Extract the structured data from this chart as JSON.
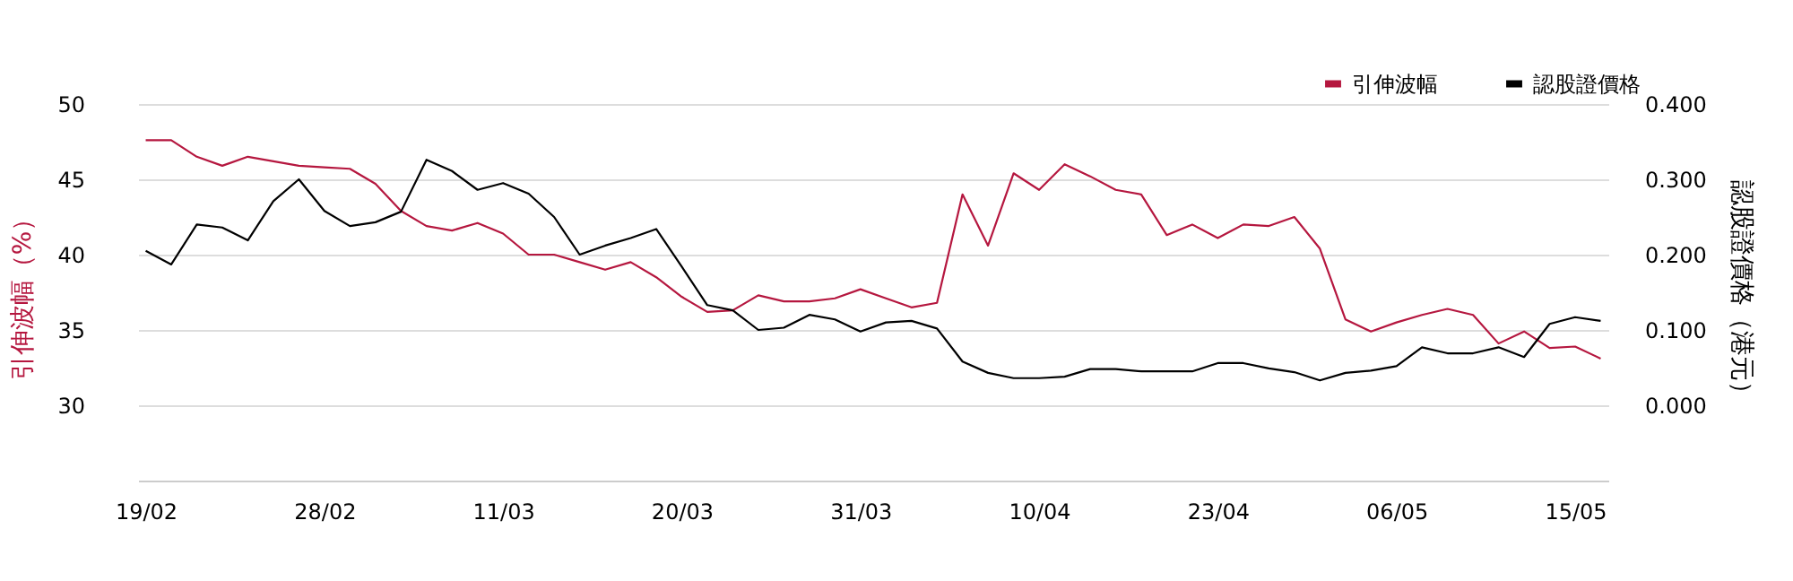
{
  "chart_data": {
    "type": "line",
    "categories": [
      "19/02",
      null,
      null,
      null,
      null,
      null,
      null,
      "28/02",
      null,
      null,
      null,
      null,
      null,
      null,
      "11/03",
      null,
      null,
      null,
      null,
      null,
      null,
      "20/03",
      null,
      null,
      null,
      null,
      null,
      null,
      "31/03",
      null,
      null,
      null,
      null,
      null,
      null,
      "10/04",
      null,
      null,
      null,
      null,
      null,
      null,
      "23/04",
      null,
      null,
      null,
      null,
      null,
      null,
      "06/05",
      null,
      null,
      null,
      null,
      null,
      null,
      "15/05",
      null
    ],
    "series": [
      {
        "name": "引伸波幅",
        "color": "#b5173f",
        "values": [
          47.6,
          47.6,
          46.5,
          45.9,
          46.5,
          46.2,
          45.9,
          45.8,
          45.7,
          44.7,
          42.9,
          41.9,
          41.6,
          42.1,
          41.4,
          40.0,
          40.0,
          39.5,
          39.0,
          39.5,
          38.5,
          37.2,
          36.2,
          36.3,
          37.3,
          36.9,
          36.9,
          37.1,
          37.7,
          37.1,
          36.5,
          36.8,
          44.0,
          40.6,
          45.4,
          44.3,
          46.0,
          45.2,
          44.3,
          44.0,
          41.3,
          42.0,
          41.1,
          42.0,
          41.9,
          42.5,
          40.4,
          35.7,
          34.9,
          35.5,
          36.0,
          36.4,
          36.0,
          34.1,
          34.9,
          33.8,
          33.9,
          33.1
        ]
      },
      {
        "name": "認股證價格",
        "color": "#000000",
        "axis": "y2",
        "values": [
          0.205,
          0.187,
          0.24,
          0.236,
          0.219,
          0.271,
          0.3,
          0.258,
          0.238,
          0.243,
          0.257,
          0.326,
          0.311,
          0.286,
          0.295,
          0.281,
          0.25,
          0.2,
          0.212,
          0.222,
          0.234,
          0.184,
          0.133,
          0.126,
          0.1,
          0.103,
          0.12,
          0.114,
          0.098,
          0.11,
          0.112,
          0.102,
          0.058,
          0.043,
          0.036,
          0.036,
          0.038,
          0.048,
          0.048,
          0.045,
          0.045,
          0.045,
          0.056,
          0.056,
          0.049,
          0.044,
          0.033,
          0.043,
          0.046,
          0.052,
          0.077,
          0.069,
          0.069,
          0.077,
          0.064,
          0.108,
          0.117,
          0.112
        ]
      }
    ],
    "ylabel": "引伸波幅（%）",
    "y2label": "認股證價格（港元）",
    "ylim": [
      25,
      50
    ],
    "yticks": [
      30,
      35,
      40,
      45,
      50
    ],
    "y2lim": [
      -0.1,
      0.4
    ],
    "y2ticks": [
      {
        "value": 0,
        "label": "0.000"
      },
      {
        "value": 0.1,
        "label": "0.100"
      },
      {
        "value": 0.2,
        "label": "0.200"
      },
      {
        "value": 0.3,
        "label": "0.300"
      },
      {
        "value": 0.4,
        "label": "0.400"
      }
    ],
    "grid": "y",
    "legend": "top right",
    "marker": "none",
    "line_style": "solid"
  }
}
